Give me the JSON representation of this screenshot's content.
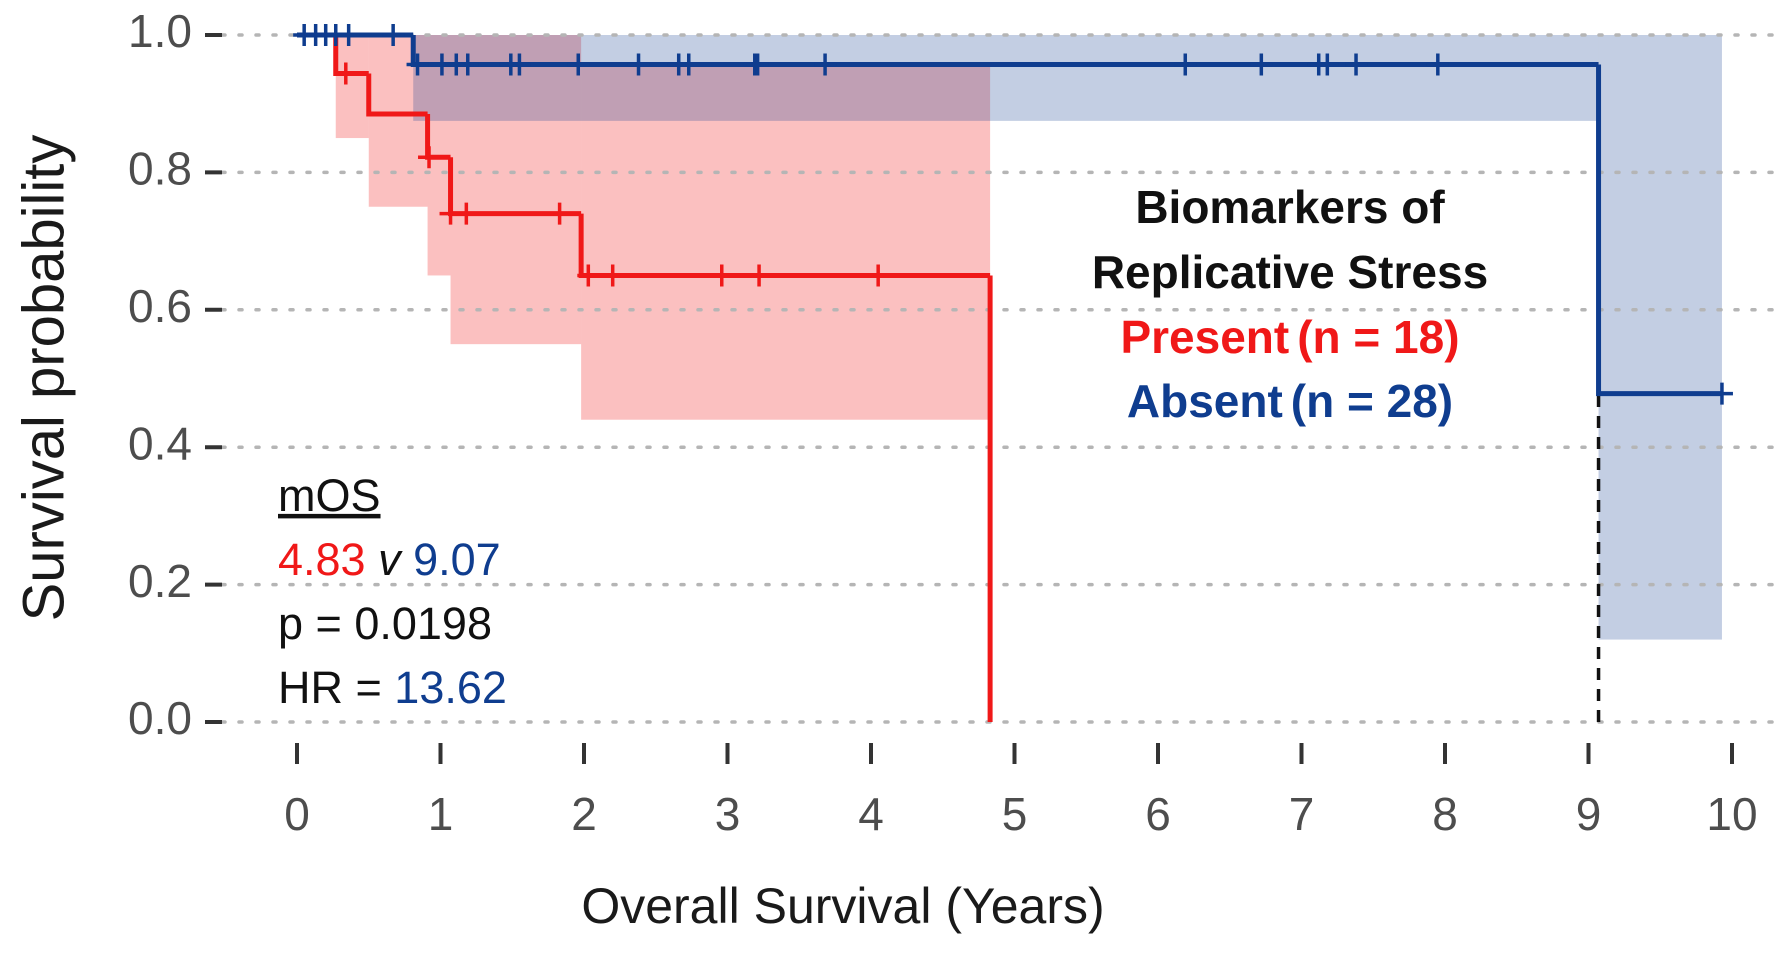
{
  "chart_data": {
    "type": "survival",
    "xlabel": "Overall Survival (Years)",
    "ylabel": "Survival probability",
    "xlim": [
      0,
      10
    ],
    "xticks": [
      0,
      1,
      2,
      3,
      4,
      5,
      6,
      7,
      8,
      9,
      10
    ],
    "ylim": [
      0,
      1
    ],
    "yticks": [
      {
        "value": 0,
        "label": "0.0"
      },
      {
        "value": 0.2,
        "label": "0.2"
      },
      {
        "value": 0.4,
        "label": "0.4"
      },
      {
        "value": 0.6,
        "label": "0.6"
      },
      {
        "value": 0.8,
        "label": "0.8"
      },
      {
        "value": 1,
        "label": "1.0"
      }
    ],
    "grid": "y",
    "legend_title": [
      "Biomarkers of",
      "Replicative Stress"
    ],
    "series": [
      {
        "name": "Present",
        "n_label": "(n = 18)",
        "color": "#f01818",
        "x": [
          0,
          0.27,
          0.5,
          0.91,
          1.07,
          1.98,
          4.83
        ],
        "values": [
          1,
          0.944,
          0.885,
          0.822,
          0.74,
          0.65,
          0
        ],
        "lower": [
          1,
          0.85,
          0.75,
          0.65,
          0.55,
          0.44,
          null
        ],
        "upper": [
          1,
          1,
          1,
          1,
          1,
          0.96,
          null
        ],
        "censors": [
          0.34,
          0.92,
          1.07,
          1.18,
          1.83,
          2.03,
          2.2,
          2.96,
          3.22,
          4.05
        ],
        "median": 4.83
      },
      {
        "name": "Absent",
        "n_label": "(n = 28)",
        "color": "#0f3d8f",
        "x": [
          0,
          0.81,
          9.07
        ],
        "values": [
          1,
          0.957,
          0.478
        ],
        "lower": [
          1,
          0.875,
          0.12
        ],
        "upper": [
          1,
          1,
          1
        ],
        "censors": [
          0.05,
          0.13,
          0.2,
          0.27,
          0.36,
          0.67,
          0.84,
          1.01,
          1.11,
          1.19,
          1.49,
          1.55,
          1.96,
          2.38,
          2.66,
          2.73,
          3.19,
          3.21,
          3.68,
          6.19,
          6.72,
          7.12,
          7.18,
          7.38,
          7.95,
          9.93
        ],
        "median": 9.07
      }
    ],
    "annotation": {
      "heading": "mOS",
      "versus": "v",
      "p_label": "p =",
      "p": 0.0198,
      "hr_label": "HR =",
      "hr": 13.62
    }
  }
}
